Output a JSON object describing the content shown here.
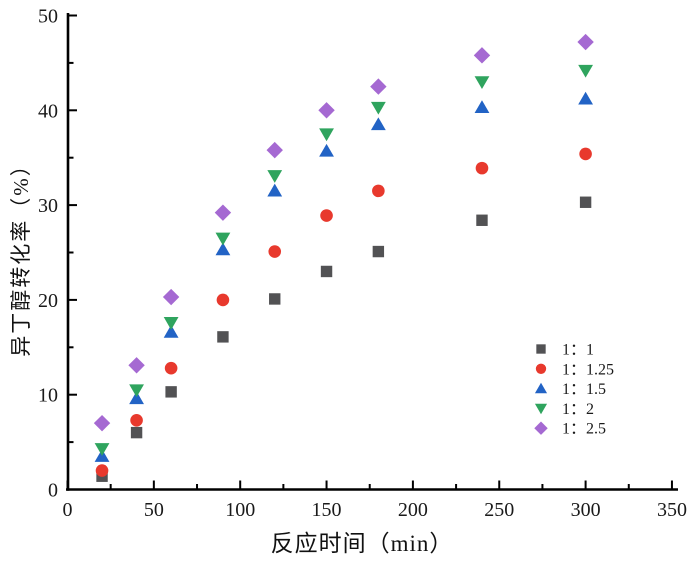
{
  "figure": {
    "background": "#ffffff",
    "axis_color": "#000000",
    "text_color": "#1a1a1a"
  },
  "chart_data": {
    "type": "scatter",
    "title": "",
    "xlabel": "反应时间（min）",
    "ylabel": "异丁醇转化率（%）",
    "xlim": [
      0,
      350
    ],
    "ylim": [
      0,
      50
    ],
    "x_major_ticks": [
      0,
      50,
      100,
      150,
      200,
      250,
      300,
      350
    ],
    "x_minor_ticks": [
      25,
      75,
      125,
      175,
      225,
      275,
      325
    ],
    "y_major_ticks": [
      0,
      10,
      20,
      30,
      40,
      50
    ],
    "y_minor_ticks": [
      5,
      15,
      25,
      35,
      45
    ],
    "grid": false,
    "legend_position": "inside-right",
    "x": [
      20,
      40,
      60,
      90,
      120,
      150,
      180,
      240,
      300
    ],
    "series": [
      {
        "name": "1：1",
        "marker": "square",
        "color": "#525254",
        "values": [
          1.4,
          6.0,
          10.3,
          16.1,
          20.1,
          23.0,
          25.1,
          28.4,
          30.3
        ]
      },
      {
        "name": "1：1.25",
        "marker": "circle",
        "color": "#e8392d",
        "values": [
          2.0,
          7.3,
          12.8,
          20.0,
          25.1,
          28.9,
          31.5,
          33.9,
          35.4
        ]
      },
      {
        "name": "1：1.5",
        "marker": "triangle-up",
        "color": "#2263c5",
        "values": [
          3.5,
          9.6,
          16.6,
          25.3,
          31.5,
          35.7,
          38.5,
          40.3,
          41.2
        ]
      },
      {
        "name": "1：2",
        "marker": "triangle-down",
        "color": "#2fa45e",
        "values": [
          4.3,
          10.5,
          17.6,
          26.5,
          33.1,
          37.5,
          40.3,
          43.0,
          44.2
        ]
      },
      {
        "name": "1：2.5",
        "marker": "diamond",
        "color": "#a569d2",
        "values": [
          7.0,
          13.1,
          20.3,
          29.2,
          35.8,
          40.0,
          42.5,
          45.8,
          47.2
        ]
      }
    ]
  }
}
